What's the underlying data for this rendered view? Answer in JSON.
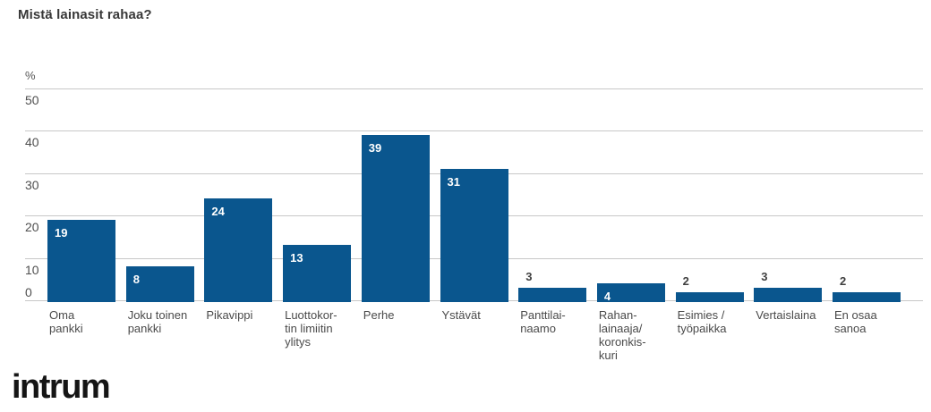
{
  "title": "Mistä lainasit rahaa?",
  "footer": {
    "logo_text": "intrum"
  },
  "chart_data": {
    "type": "bar",
    "title": "Mistä lainasit rahaa?",
    "xlabel": "",
    "ylabel": "%",
    "ylim": [
      0,
      50
    ],
    "yticks": [
      0,
      10,
      20,
      30,
      40,
      50
    ],
    "grid": true,
    "legend": "none",
    "bar_color": "#0a568e",
    "value_label_inside_color": "#ffffff",
    "value_label_outside_color": "#404040",
    "categories": [
      "Oma\npankki",
      "Joku toinen\npankki",
      "Pikavippi",
      "Luottokor-\ntin limiitin\nylitys",
      "Perhe",
      "Ystävät",
      "Panttilai-\nnaamo",
      "Rahan-\nlainaaja/\nkoronkis-\nkuri",
      "Esimies /\ntyöpaikka",
      "Vertaislaina",
      "En osaa\nsanoa"
    ],
    "values": [
      19,
      8,
      24,
      13,
      39,
      31,
      3,
      4,
      2,
      3,
      2
    ],
    "value_labels_inside_bar": [
      true,
      true,
      true,
      true,
      true,
      true,
      false,
      true,
      false,
      false,
      false
    ]
  }
}
